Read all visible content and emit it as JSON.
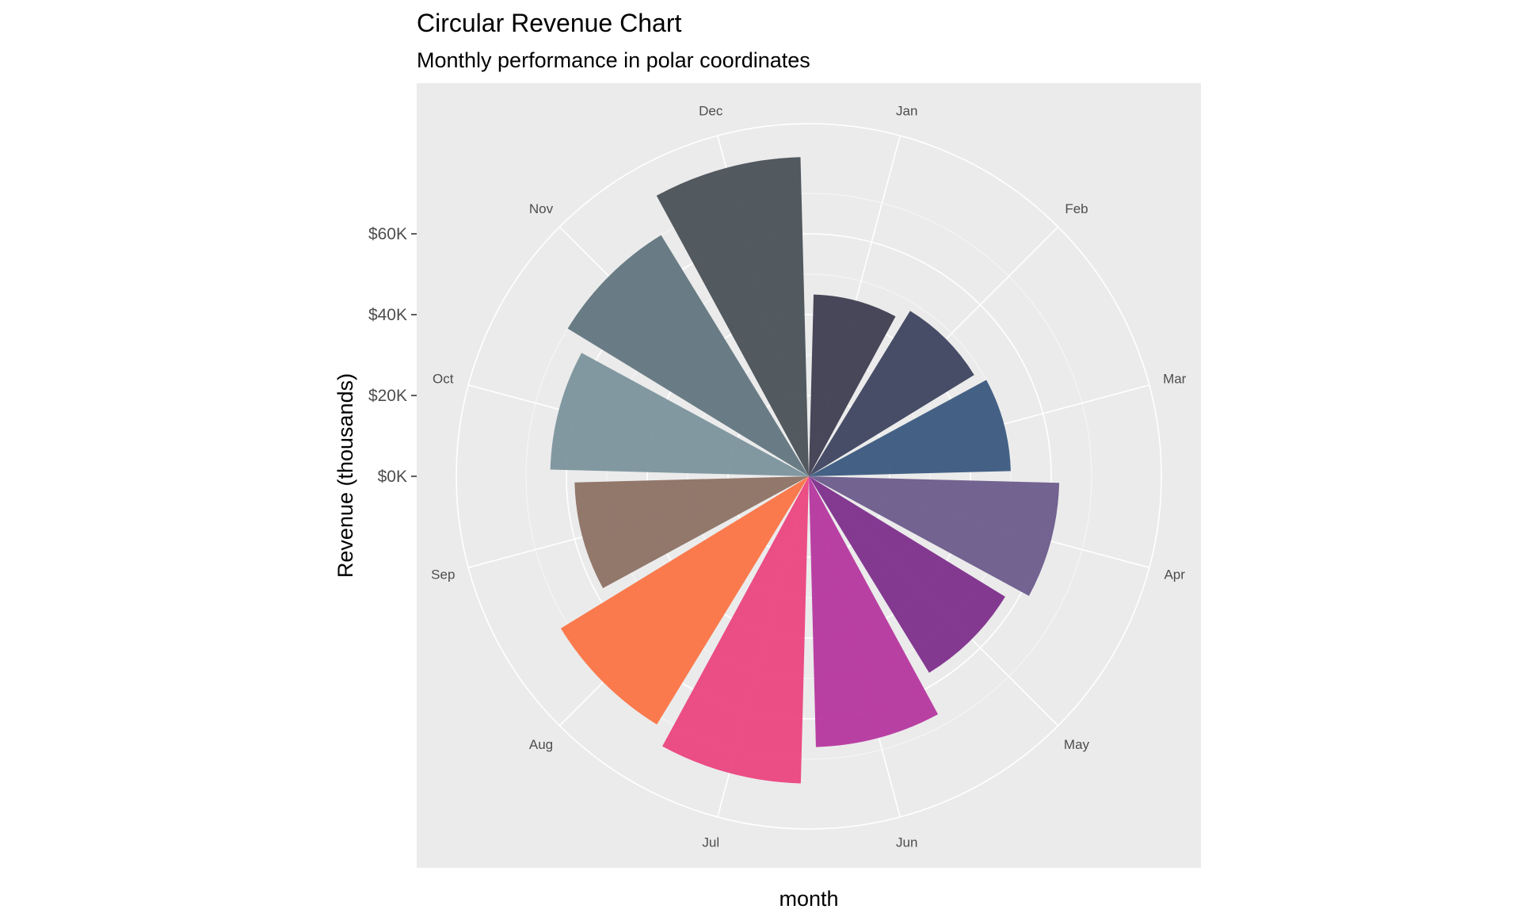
{
  "chart_data": {
    "type": "bar",
    "coordinates": "polar",
    "title": "Circular Revenue Chart",
    "subtitle": "Monthly performance in polar coordinates",
    "xlabel": "month",
    "ylabel": "Revenue (thousands)",
    "categories": [
      "Jan",
      "Feb",
      "Mar",
      "Apr",
      "May",
      "Jun",
      "Jul",
      "Aug",
      "Sep",
      "Oct",
      "Nov",
      "Dec"
    ],
    "values": [
      45,
      48,
      50,
      62,
      57,
      67,
      76,
      72,
      58,
      64,
      70,
      79
    ],
    "colors": [
      "#3f3e51",
      "#3e4560",
      "#3b5a80",
      "#6b5c8c",
      "#7e2f8c",
      "#b6379f",
      "#eb4580",
      "#fb7446",
      "#8d7164",
      "#7b939d",
      "#627680",
      "#4a5157"
    ],
    "bar_opacity": 0.95,
    "y_ticks": [
      0,
      20,
      40,
      60
    ],
    "y_tick_labels": [
      "$0K",
      "$20K",
      "$40K",
      "$60K"
    ],
    "panel_background": "#ebebeb",
    "grid_color": "#ffffff",
    "grid": true,
    "legend": "none"
  }
}
